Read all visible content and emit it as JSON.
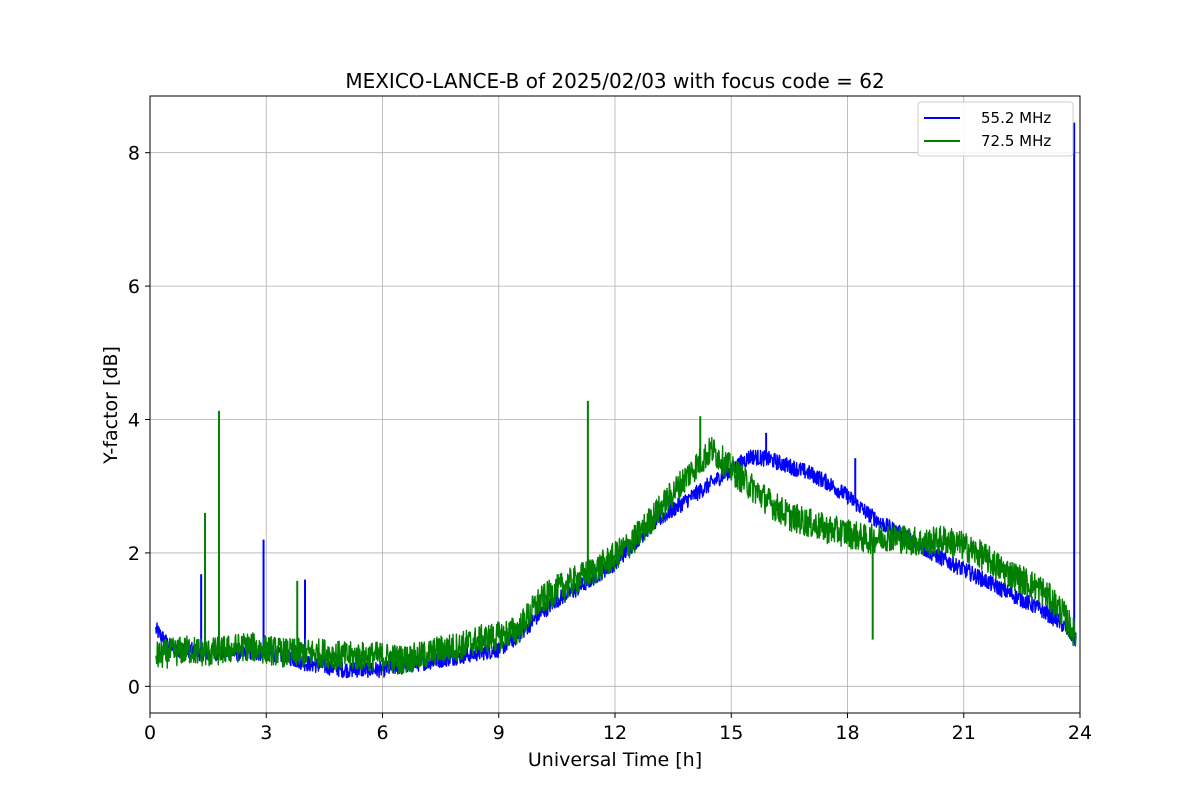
{
  "chart_data": {
    "type": "line",
    "title": "MEXICO-LANCE-B of 2025/02/03 with focus code = 62",
    "xlabel": "Universal Time [h]",
    "ylabel": "Y-factor [dB]",
    "xlim": [
      0,
      24
    ],
    "ylim": [
      -0.4,
      8.85
    ],
    "xticks": [
      0,
      3,
      6,
      9,
      12,
      15,
      18,
      21,
      24
    ],
    "yticks": [
      0,
      2,
      4,
      6,
      8
    ],
    "grid": true,
    "legend_position": "top-right",
    "series": [
      {
        "name": "55.2 MHz",
        "color": "#0000ff",
        "x": [
          0.15,
          0.3,
          0.5,
          0.8,
          1.0,
          1.3,
          1.5,
          2.0,
          2.5,
          3.0,
          3.5,
          4.0,
          4.5,
          5.0,
          5.5,
          6.0,
          6.5,
          7.0,
          7.5,
          8.0,
          8.5,
          9.0,
          9.5,
          10.0,
          10.5,
          11.0,
          11.5,
          12.0,
          12.5,
          13.0,
          13.5,
          14.0,
          14.5,
          15.0,
          15.5,
          16.0,
          16.5,
          17.0,
          17.5,
          18.0,
          18.5,
          19.0,
          19.5,
          20.0,
          20.5,
          21.0,
          21.5,
          22.0,
          22.5,
          23.0,
          23.5,
          23.9
        ],
        "y": [
          0.85,
          0.75,
          0.6,
          0.55,
          0.55,
          0.5,
          0.5,
          0.5,
          0.5,
          0.5,
          0.45,
          0.35,
          0.3,
          0.25,
          0.25,
          0.25,
          0.3,
          0.35,
          0.4,
          0.45,
          0.5,
          0.55,
          0.75,
          1.05,
          1.3,
          1.45,
          1.65,
          1.85,
          2.15,
          2.45,
          2.65,
          2.85,
          3.05,
          3.25,
          3.45,
          3.4,
          3.3,
          3.2,
          3.05,
          2.85,
          2.6,
          2.4,
          2.25,
          2.05,
          1.9,
          1.75,
          1.6,
          1.45,
          1.3,
          1.15,
          0.95,
          0.7
        ],
        "noise": 0.12,
        "spikes": [
          [
            1.32,
            1.68
          ],
          [
            2.93,
            2.2
          ],
          [
            4.0,
            1.6
          ],
          [
            15.9,
            3.8
          ],
          [
            18.2,
            3.42
          ],
          [
            23.85,
            8.45
          ]
        ]
      },
      {
        "name": "72.5 MHz",
        "color": "#008000",
        "x": [
          0.15,
          0.5,
          1.0,
          1.5,
          2.0,
          2.5,
          3.0,
          3.5,
          4.0,
          4.5,
          5.0,
          5.5,
          6.0,
          6.5,
          7.0,
          7.5,
          8.0,
          8.5,
          9.0,
          9.5,
          10.0,
          10.5,
          11.0,
          11.5,
          12.0,
          12.5,
          13.0,
          13.5,
          14.0,
          14.5,
          15.0,
          15.5,
          16.0,
          16.5,
          17.0,
          17.5,
          18.0,
          18.5,
          19.0,
          19.5,
          20.0,
          20.5,
          21.0,
          21.5,
          22.0,
          22.5,
          23.0,
          23.5,
          23.9
        ],
        "y": [
          0.45,
          0.5,
          0.55,
          0.5,
          0.55,
          0.6,
          0.55,
          0.5,
          0.5,
          0.5,
          0.45,
          0.45,
          0.45,
          0.4,
          0.45,
          0.55,
          0.6,
          0.7,
          0.75,
          0.85,
          1.25,
          1.45,
          1.6,
          1.75,
          1.95,
          2.2,
          2.55,
          2.9,
          3.25,
          3.55,
          3.25,
          3.0,
          2.75,
          2.55,
          2.45,
          2.35,
          2.3,
          2.2,
          2.25,
          2.2,
          2.15,
          2.2,
          2.1,
          1.95,
          1.75,
          1.6,
          1.45,
          1.15,
          0.75
        ],
        "noise": 0.22,
        "spikes": [
          [
            1.42,
            2.6
          ],
          [
            1.78,
            4.13
          ],
          [
            3.8,
            1.58
          ],
          [
            11.3,
            4.28
          ],
          [
            14.2,
            4.05
          ],
          [
            18.65,
            0.7
          ]
        ]
      }
    ]
  }
}
